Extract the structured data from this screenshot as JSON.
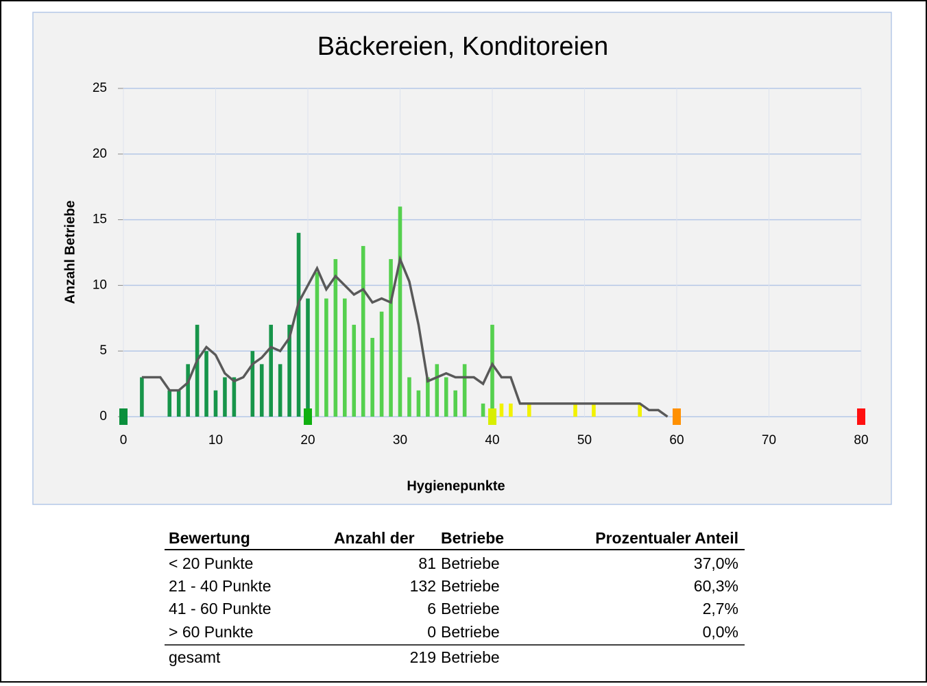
{
  "chart_data": {
    "type": "bar",
    "title": "Bäckereien, Konditoreien",
    "x_label": "Hygienepunkte",
    "y_label": "Anzahl Betriebe",
    "xlim": [
      0,
      80
    ],
    "xticks": [
      0,
      10,
      20,
      30,
      40,
      50,
      60,
      70,
      80
    ],
    "ylim": [
      0,
      25
    ],
    "yticks": [
      0,
      5,
      10,
      15,
      20,
      25
    ],
    "grid": true,
    "series": [
      {
        "color": "#17954a",
        "x": [
          2,
          5,
          6,
          7,
          8,
          9,
          10,
          11,
          12,
          14,
          15,
          16,
          17,
          18,
          19,
          20
        ],
        "values": [
          3,
          2,
          2,
          4,
          7,
          5,
          2,
          3,
          3,
          5,
          4,
          7,
          4,
          7,
          14,
          9
        ]
      },
      {
        "color": "#55d04e",
        "x": [
          21,
          22,
          23,
          24,
          25,
          26,
          27,
          28,
          29,
          30,
          31,
          32,
          33,
          34,
          35,
          36,
          37,
          39,
          40
        ],
        "values": [
          11,
          9,
          12,
          9,
          7,
          13,
          6,
          8,
          12,
          16,
          3,
          2,
          3,
          4,
          3,
          2,
          4,
          1,
          7
        ]
      },
      {
        "color": "#f2f200",
        "x": [
          41,
          42,
          44,
          49,
          51,
          56
        ],
        "values": [
          1,
          1,
          1,
          1,
          1,
          1
        ]
      },
      {
        "type": "line",
        "color": "#595959",
        "x": [
          2,
          3,
          4,
          5,
          6,
          7,
          8,
          9,
          10,
          11,
          12,
          13,
          14,
          15,
          16,
          17,
          18,
          19,
          20,
          21,
          22,
          23,
          24,
          25,
          26,
          27,
          28,
          29,
          30,
          31,
          32,
          33,
          34,
          35,
          36,
          37,
          38,
          39,
          40,
          41,
          42,
          43,
          44,
          45,
          46,
          47,
          48,
          49,
          50,
          51,
          52,
          53,
          54,
          55,
          56,
          57,
          58,
          59
        ],
        "values": [
          3,
          3,
          3,
          2,
          2,
          2.6,
          4.3,
          5.3,
          4.7,
          3.3,
          2.7,
          3,
          4,
          4.5,
          5.3,
          5,
          6,
          8.7,
          10,
          11.3,
          9.7,
          10.7,
          10,
          9.3,
          9.7,
          8.7,
          9,
          8.7,
          12,
          10.3,
          7,
          2.7,
          3,
          3.3,
          3,
          3,
          3,
          2.5,
          4,
          3,
          3,
          1,
          1,
          1,
          1,
          1,
          1,
          1,
          1,
          1,
          1,
          1,
          1,
          1,
          1,
          0.5,
          0.5,
          0
        ]
      }
    ]
  },
  "table": {
    "header": [
      "Bewertung",
      "Anzahl der",
      "Betriebe",
      "Prozentualer Anteil"
    ],
    "rows": [
      [
        "< 20 Punkte",
        81,
        "Betriebe",
        "37,0%"
      ],
      [
        "21 - 40 Punkte",
        132,
        "Betriebe",
        "60,3%"
      ],
      [
        "41 - 60 Punkte",
        6,
        "Betriebe",
        "2,7%"
      ],
      [
        "> 60 Punkte",
        0,
        "Betriebe",
        "0,0%"
      ]
    ],
    "total": [
      "gesamt",
      219,
      "Betriebe"
    ]
  }
}
